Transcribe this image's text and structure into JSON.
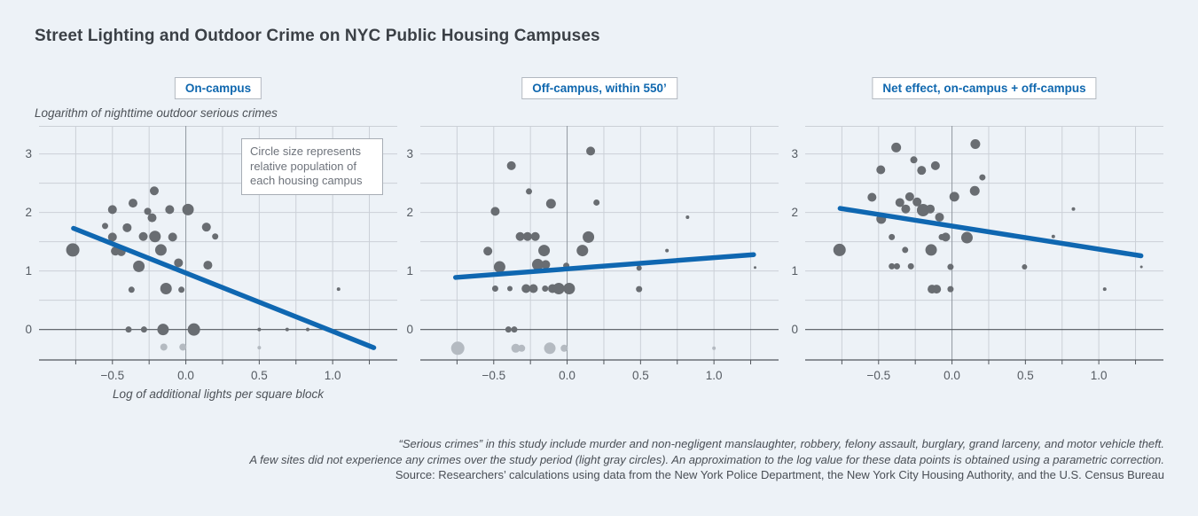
{
  "title": "Street Lighting and Outdoor Crime on NYC Public Housing Campuses",
  "annotation": {
    "text": "Circle size represents relative population of each housing campus"
  },
  "footnotes": {
    "line1": "“Serious crimes” in this study include murder and non-negligent manslaughter, robbery, felony assault, burglary, grand larceny, and motor vehicle theft.",
    "line2": "A few sites did not experience any crimes over the study period (light gray circles). An approximation to the log value for these data points is obtained using a parametric correction.",
    "source": "Source: Researchers’ calculations using data from the New York Police Department, the New York City Housing Authority, and the U.S. Census Bureau"
  },
  "colors": {
    "background": "#edf2f7",
    "grid": "#cbd0d7",
    "x0_grid": "#9097a0",
    "zero_axis": "#51565c",
    "dot_dark": "#696d72",
    "dot_light": "#b4bac1",
    "trend_blue": "#0f67b1",
    "header_blue": "#1068af",
    "tick_text": "#555b62"
  },
  "chart_data": [
    {
      "type": "scatter",
      "title": "On-campus",
      "xlabel": "Log of additional lights per square block",
      "ylabel": "Logarithm of nighttime outdoor serious crimes",
      "x_range": [
        -1.0,
        1.44
      ],
      "y_range": [
        -0.52,
        3.48
      ],
      "x_ticks": [
        -0.5,
        0.0,
        0.5,
        1.0
      ],
      "y_ticks": [
        0,
        1,
        2,
        3
      ],
      "x_grid_step": 0.25,
      "y_grid_step": 0.5,
      "grid": true,
      "legend_note": "circle size = relative campus population; light gray = zero-crime sites (parametric correction)",
      "trend": [
        [
          -0.765,
          1.73
        ],
        [
          1.28,
          -0.31
        ]
      ],
      "points": [
        [
          -0.77,
          1.36,
          7.5,
          "d"
        ],
        [
          -0.55,
          1.77,
          3.5,
          "d"
        ],
        [
          -0.5,
          2.05,
          5,
          "d"
        ],
        [
          -0.5,
          1.58,
          5,
          "d"
        ],
        [
          -0.48,
          1.34,
          5,
          "d"
        ],
        [
          -0.44,
          1.33,
          5,
          "d"
        ],
        [
          -0.4,
          1.74,
          5,
          "d"
        ],
        [
          -0.39,
          0,
          3.5,
          "d"
        ],
        [
          -0.37,
          0.68,
          3.5,
          "d"
        ],
        [
          -0.36,
          2.16,
          5,
          "d"
        ],
        [
          -0.32,
          1.08,
          6.5,
          "d"
        ],
        [
          -0.29,
          1.59,
          5,
          "d"
        ],
        [
          -0.285,
          0,
          3.5,
          "d"
        ],
        [
          -0.26,
          2.02,
          4,
          "d"
        ],
        [
          -0.23,
          1.91,
          5,
          "d"
        ],
        [
          -0.215,
          2.37,
          5,
          "d"
        ],
        [
          -0.21,
          1.59,
          6.5,
          "d"
        ],
        [
          -0.17,
          1.36,
          6.5,
          "d"
        ],
        [
          -0.155,
          0,
          6.5,
          "d"
        ],
        [
          -0.15,
          -0.3,
          4,
          "l"
        ],
        [
          -0.135,
          0.7,
          6.5,
          "d"
        ],
        [
          -0.11,
          2.05,
          5,
          "d"
        ],
        [
          -0.09,
          1.58,
          5,
          "d"
        ],
        [
          -0.05,
          1.14,
          5,
          "d"
        ],
        [
          -0.03,
          0.68,
          3.5,
          "d"
        ],
        [
          -0.02,
          -0.3,
          4,
          "l"
        ],
        [
          0.015,
          2.05,
          6.5,
          "d"
        ],
        [
          0.055,
          0,
          7,
          "d"
        ],
        [
          0.14,
          1.75,
          5,
          "d"
        ],
        [
          0.15,
          1.1,
          5,
          "d"
        ],
        [
          0.2,
          1.59,
          3.5,
          "d"
        ],
        [
          0.5,
          0,
          2,
          "d"
        ],
        [
          0.5,
          -0.31,
          2,
          "l"
        ],
        [
          0.69,
          0,
          2,
          "d"
        ],
        [
          0.83,
          0,
          2,
          "d"
        ],
        [
          1.04,
          0.69,
          2,
          "d"
        ]
      ]
    },
    {
      "type": "scatter",
      "title": "Off-campus, within 550’",
      "xlabel": "",
      "ylabel": "",
      "x_range": [
        -1.0,
        1.44
      ],
      "y_range": [
        -0.52,
        3.48
      ],
      "x_ticks": [
        -0.5,
        0.0,
        0.5,
        1.0
      ],
      "y_ticks": [
        0,
        1,
        2,
        3
      ],
      "x_grid_step": 0.25,
      "y_grid_step": 0.5,
      "grid": true,
      "trend": [
        [
          -0.76,
          0.89
        ],
        [
          1.27,
          1.28
        ]
      ],
      "points": [
        [
          0.16,
          3.05,
          5,
          "d"
        ],
        [
          -0.38,
          2.8,
          5,
          "d"
        ],
        [
          -0.26,
          2.36,
          3.5,
          "d"
        ],
        [
          -0.11,
          2.15,
          5.5,
          "d"
        ],
        [
          0.2,
          2.17,
          3.5,
          "d"
        ],
        [
          -0.49,
          2.02,
          5,
          "d"
        ],
        [
          0.82,
          1.92,
          2,
          "d"
        ],
        [
          -0.32,
          1.59,
          5,
          "d"
        ],
        [
          -0.27,
          1.59,
          5,
          "d"
        ],
        [
          -0.217,
          1.59,
          5,
          "d"
        ],
        [
          0.145,
          1.58,
          6.5,
          "d"
        ],
        [
          -0.157,
          1.35,
          6.5,
          "d"
        ],
        [
          0.104,
          1.35,
          6.5,
          "d"
        ],
        [
          -0.54,
          1.34,
          5,
          "d"
        ],
        [
          0.68,
          1.35,
          2,
          "d"
        ],
        [
          -0.46,
          1.07,
          6.5,
          "d"
        ],
        [
          -0.2,
          1.11,
          6.5,
          "d"
        ],
        [
          -0.146,
          1.11,
          5,
          "d"
        ],
        [
          -0.006,
          1.09,
          3.5,
          "d"
        ],
        [
          0.49,
          1.05,
          3,
          "d"
        ],
        [
          1.28,
          1.06,
          1.5,
          "d"
        ],
        [
          -0.49,
          0.7,
          3.5,
          "d"
        ],
        [
          -0.39,
          0.7,
          3,
          "d"
        ],
        [
          -0.28,
          0.7,
          5,
          "d"
        ],
        [
          -0.23,
          0.7,
          5,
          "d"
        ],
        [
          -0.15,
          0.7,
          3.5,
          "d"
        ],
        [
          -0.1,
          0.7,
          5,
          "d"
        ],
        [
          -0.057,
          0.7,
          6.5,
          "d"
        ],
        [
          0.014,
          0.7,
          6.5,
          "d"
        ],
        [
          0.49,
          0.69,
          3.5,
          "d"
        ],
        [
          -0.4,
          0,
          3.5,
          "d"
        ],
        [
          -0.36,
          0,
          3.5,
          "d"
        ],
        [
          -0.745,
          -0.32,
          7.5,
          "l"
        ],
        [
          -0.35,
          -0.32,
          5,
          "l"
        ],
        [
          -0.31,
          -0.32,
          4,
          "l"
        ],
        [
          -0.118,
          -0.32,
          6.5,
          "l"
        ],
        [
          -0.02,
          -0.32,
          4,
          "l"
        ],
        [
          1.0,
          -0.32,
          2,
          "l"
        ]
      ]
    },
    {
      "type": "scatter",
      "title": "Net effect, on-campus + off-campus",
      "xlabel": "",
      "ylabel": "",
      "x_range": [
        -1.0,
        1.44
      ],
      "y_range": [
        -0.52,
        3.48
      ],
      "x_ticks": [
        -0.5,
        0.0,
        0.5,
        1.0
      ],
      "y_ticks": [
        0,
        1,
        2,
        3
      ],
      "x_grid_step": 0.25,
      "y_grid_step": 0.5,
      "grid": true,
      "trend": [
        [
          -0.762,
          2.07
        ],
        [
          1.287,
          1.26
        ]
      ],
      "points": [
        [
          0.159,
          3.17,
          5.5,
          "d"
        ],
        [
          -0.38,
          3.11,
          5.5,
          "d"
        ],
        [
          -0.26,
          2.9,
          4,
          "d"
        ],
        [
          -0.113,
          2.8,
          5,
          "d"
        ],
        [
          -0.207,
          2.72,
          5,
          "d"
        ],
        [
          -0.485,
          2.73,
          5,
          "d"
        ],
        [
          0.207,
          2.6,
          3.5,
          "d"
        ],
        [
          0.155,
          2.37,
          5.5,
          "d"
        ],
        [
          -0.545,
          2.26,
          5,
          "d"
        ],
        [
          0.016,
          2.27,
          5.5,
          "d"
        ],
        [
          -0.288,
          2.27,
          5,
          "d"
        ],
        [
          -0.355,
          2.17,
          5,
          "d"
        ],
        [
          -0.238,
          2.18,
          5,
          "d"
        ],
        [
          -0.315,
          2.06,
          5,
          "d"
        ],
        [
          -0.197,
          2.04,
          7,
          "d"
        ],
        [
          -0.148,
          2.06,
          5,
          "d"
        ],
        [
          0.827,
          2.06,
          2,
          "d"
        ],
        [
          -0.482,
          1.89,
          5.5,
          "d"
        ],
        [
          -0.085,
          1.92,
          5,
          "d"
        ],
        [
          -0.41,
          1.58,
          3.5,
          "d"
        ],
        [
          -0.07,
          1.58,
          3.5,
          "d"
        ],
        [
          -0.043,
          1.58,
          5,
          "d"
        ],
        [
          0.102,
          1.57,
          6.5,
          "d"
        ],
        [
          0.69,
          1.59,
          2,
          "d"
        ],
        [
          -0.766,
          1.36,
          7,
          "d"
        ],
        [
          -0.319,
          1.36,
          3.5,
          "d"
        ],
        [
          -0.142,
          1.36,
          6.5,
          "d"
        ],
        [
          -0.41,
          1.08,
          3.5,
          "d"
        ],
        [
          -0.375,
          1.08,
          3.5,
          "d"
        ],
        [
          -0.28,
          1.08,
          3.5,
          "d"
        ],
        [
          -0.01,
          1.07,
          3.5,
          "d"
        ],
        [
          0.494,
          1.07,
          3,
          "d"
        ],
        [
          1.29,
          1.07,
          1.5,
          "d"
        ],
        [
          -0.136,
          0.69,
          5,
          "d"
        ],
        [
          -0.105,
          0.69,
          5,
          "d"
        ],
        [
          -0.01,
          0.69,
          3.5,
          "d"
        ],
        [
          1.04,
          0.69,
          2,
          "d"
        ]
      ]
    }
  ]
}
